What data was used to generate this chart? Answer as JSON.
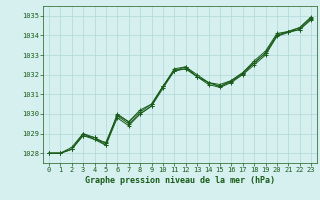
{
  "title": "Graphe pression niveau de la mer (hPa)",
  "background_color": "#d6f0f0",
  "grid_color": "#b0d8d8",
  "line_color": "#1a5c1a",
  "xlim": [
    -0.5,
    23.5
  ],
  "ylim": [
    1027.5,
    1035.5
  ],
  "yticks": [
    1028,
    1029,
    1030,
    1031,
    1032,
    1033,
    1034,
    1035
  ],
  "xticks": [
    0,
    1,
    2,
    3,
    4,
    5,
    6,
    7,
    8,
    9,
    10,
    11,
    12,
    13,
    14,
    15,
    16,
    17,
    18,
    19,
    20,
    21,
    22,
    23
  ],
  "series": [
    [
      1028.0,
      1028.0,
      1028.2,
      1029.0,
      1028.8,
      1028.5,
      1029.9,
      1029.5,
      1030.0,
      1030.4,
      1031.3,
      1032.2,
      1032.3,
      1031.9,
      1031.6,
      1031.4,
      1031.7,
      1032.1,
      1032.6,
      1033.1,
      1034.0,
      1034.2,
      1034.3,
      1034.8
    ],
    [
      1028.0,
      1028.0,
      1028.2,
      1028.9,
      1028.7,
      1028.4,
      1030.0,
      1029.6,
      1030.2,
      1030.5,
      1031.4,
      1032.3,
      1032.4,
      1031.9,
      1031.6,
      1031.5,
      1031.7,
      1032.1,
      1032.7,
      1033.2,
      1034.1,
      1034.2,
      1034.4,
      1034.95
    ],
    [
      1028.0,
      1028.0,
      1028.2,
      1028.9,
      1028.8,
      1028.4,
      1029.8,
      1029.4,
      1030.0,
      1030.4,
      1031.4,
      1032.2,
      1032.3,
      1031.9,
      1031.5,
      1031.35,
      1031.6,
      1032.0,
      1032.5,
      1033.0,
      1033.95,
      1034.15,
      1034.3,
      1034.85
    ],
    [
      1028.0,
      1028.0,
      1028.3,
      1029.0,
      1028.7,
      1028.55,
      1029.95,
      1029.6,
      1030.1,
      1030.5,
      1031.4,
      1032.2,
      1032.4,
      1032.0,
      1031.6,
      1031.4,
      1031.65,
      1032.05,
      1032.6,
      1033.1,
      1034.0,
      1034.2,
      1034.4,
      1034.9
    ]
  ]
}
